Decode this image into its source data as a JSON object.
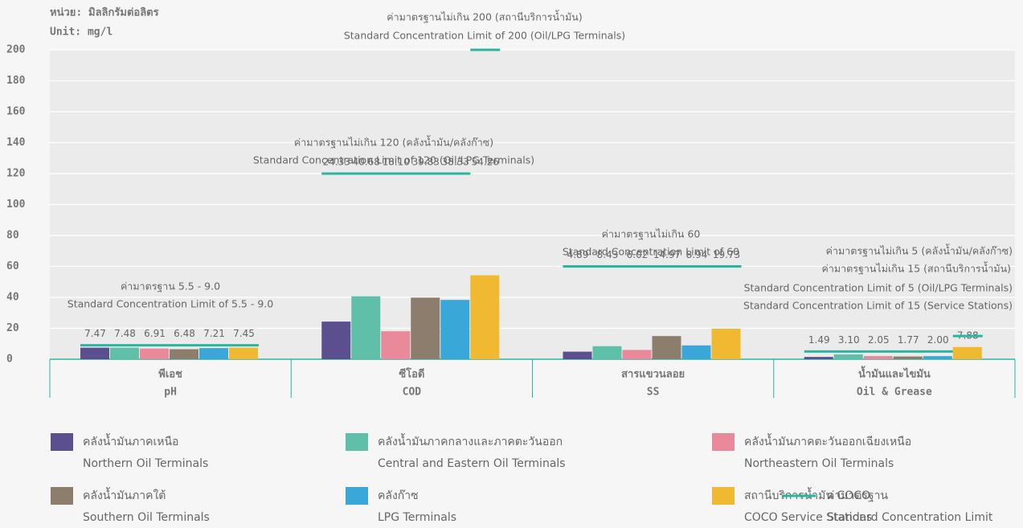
{
  "chart_data": {
    "type": "bar",
    "unit_label": "หน่วย: มิลลิกรัมต่อลิตร",
    "unit_label_en": "Unit: mg/l",
    "categories": [
      "พีเอช",
      "ซีโอดี",
      "สารแขวนลอย",
      "น้ำมันและไขมัน"
    ],
    "categories_en": [
      "pH",
      "COD",
      "SS",
      "Oil & Grease"
    ],
    "series": [
      {
        "name": "คลังน้ำมันภาคเหนือ",
        "name_en": "Northern Oil Terminals",
        "color": "#5b4f8f",
        "values": [
          7.47,
          24.33,
          4.89,
          1.49
        ],
        "value_labels": [
          "7.47",
          "24.33",
          "4.89",
          "1.49"
        ]
      },
      {
        "name": "คลังน้ำมันภาคกลางและภาคตะวันออก",
        "name_en": "Central and Eastern Oil Terminals",
        "color": "#5fbfa9",
        "values": [
          7.48,
          40.68,
          8.43,
          3.1
        ],
        "value_labels": [
          "7.48",
          "40.68",
          "8.43",
          "3.10"
        ]
      },
      {
        "name": "คลังน้ำมันภาคตะวันออกเฉียงเหนือ",
        "name_en": "Northeastern Oil Terminals",
        "color": "#e9899a",
        "values": [
          6.91,
          18.1,
          6.02,
          2.05
        ],
        "value_labels": [
          "6.91",
          "18.10",
          "6.02",
          "2.05"
        ]
      },
      {
        "name": "คลังน้ำมันภาคใต้",
        "name_en": "Southern Oil Terminals",
        "color": "#8c7d6c",
        "values": [
          6.48,
          39.83,
          14.97,
          1.77
        ],
        "value_labels": [
          "6.48",
          "39.83",
          "14.97",
          "1.77"
        ]
      },
      {
        "name": "คลังก๊าซ",
        "name_en": "LPG Terminals",
        "color": "#3aa7d9",
        "values": [
          7.21,
          38.33,
          8.94,
          2.0
        ],
        "value_labels": [
          "7.21",
          "38.33",
          "8.94",
          "2.00"
        ]
      },
      {
        "name": "สถานีบริการน้ำมัน COCO",
        "name_en": "COCO Service Stations",
        "color": "#f1b932",
        "values": [
          7.45,
          54.26,
          19.73,
          7.88
        ],
        "value_labels": [
          "7.45",
          "54.26",
          "19.73",
          "7.88"
        ]
      }
    ],
    "standards": [
      {
        "category": 0,
        "values": [
          9.0
        ],
        "labels": [
          "ค่ามาตรฐาน 5.5 - 9.0",
          "Standard Concentration Limit of 5.5 - 9.0"
        ]
      },
      {
        "category": 1,
        "values": [
          120
        ],
        "labels": [
          "ค่ามาตรฐานไม่เกิน 120 (คลังน้ำมัน/คลังก๊าซ)",
          "Standard Concentration Limit of 120 (Oil/LPG Terminals)"
        ]
      },
      {
        "category": 1,
        "series": 5,
        "values": [
          200
        ],
        "labels": [
          "ค่ามาตรฐานไม่เกิน 200 (สถานีบริการน้ำมัน)",
          "Standard Concentration Limit of 200 (Oil/LPG Terminals)"
        ]
      },
      {
        "category": 2,
        "values": [
          60
        ],
        "labels": [
          "ค่ามาตรฐานไม่เกิน 60",
          "Standard Concentration Limit of 60"
        ]
      },
      {
        "category": 3,
        "values": [
          5
        ],
        "labels": [
          "ค่ามาตรฐานไม่เกิน 5 (คลังน้ำมัน/คลังก๊าซ)",
          "Standard Concentration Limit of 5 (Oil/LPG Terminals)"
        ]
      },
      {
        "category": 3,
        "series": 5,
        "values": [
          15
        ],
        "labels": [
          "ค่ามาตรฐานไม่เกิน 15 (สถานีบริการน้ำมัน)",
          "Standard Concentration Limit of 15 (Service Stations)"
        ]
      }
    ],
    "standard_color": "#2bb5a0",
    "standard_legend": {
      "name": "ค่ามาตรฐาน",
      "name_en": "Standard Concentration Limit"
    },
    "ylim": [
      0,
      200
    ],
    "yticks": [
      0,
      20,
      40,
      60,
      80,
      100,
      120,
      140,
      160,
      180,
      200
    ],
    "grid": true
  }
}
